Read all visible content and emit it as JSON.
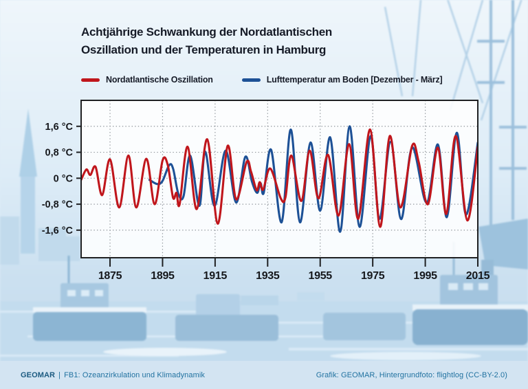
{
  "title": {
    "line1": "Achtjährige Schwankung der Nordatlantischen",
    "line2": "Oszillation und der Temperaturen in Hamburg"
  },
  "legend": {
    "items": [
      {
        "label": "Nordatlantische Oszillation",
        "color": "#c0161c"
      },
      {
        "label": "Lufttemperatur am Boden [Dezember - März]",
        "color": "#1d5196"
      }
    ]
  },
  "footer": {
    "brand": "GEOMAR",
    "separator": "|",
    "department": "FB1: Ozeanzirkulation und Klimadynamik",
    "credit": "Grafik: GEOMAR, Hintergrundfoto: flightlog (CC-BY-2.0)"
  },
  "chart_data": {
    "type": "line",
    "title": "Achtjährige Schwankung der Nordatlantischen Oszillation und der Temperaturen in Hamburg",
    "unit": "°C",
    "grid": "dotted",
    "legend_position": "top",
    "plot_background": "rgba(255,255,255,0.87)",
    "grid_color": "#8f959b",
    "frame_color": "#1f2022",
    "label_color": "#16181c",
    "x_axis": {
      "range": [
        1864,
        2015
      ],
      "ticks": [
        1875,
        1895,
        1915,
        1935,
        1955,
        1975,
        1995,
        2015
      ],
      "tick_labels": [
        "1875",
        "1895",
        "1915",
        "1935",
        "1955",
        "1975",
        "1995",
        "2015"
      ]
    },
    "y_axis": {
      "range": [
        -2.45,
        2.4
      ],
      "ticks": [
        1.6,
        0.8,
        0,
        -0.8,
        -1.6
      ],
      "tick_labels": [
        "1,6 °C",
        "0,8 °C",
        "0 °C",
        "-0,8 °C",
        "-1,6 °C"
      ]
    },
    "series": [
      {
        "name": "Nordatlantische Oszillation",
        "color": "#c0161c",
        "points": [
          [
            1864,
            -0.05
          ],
          [
            1866,
            0.27
          ],
          [
            1867.5,
            0.1
          ],
          [
            1869.5,
            0.35
          ],
          [
            1872,
            -0.52
          ],
          [
            1875,
            0.58
          ],
          [
            1878.5,
            -0.9
          ],
          [
            1882,
            0.7
          ],
          [
            1885,
            -0.9
          ],
          [
            1888.8,
            0.6
          ],
          [
            1892,
            -0.8
          ],
          [
            1895,
            0.55
          ],
          [
            1897,
            0.4
          ],
          [
            1899,
            -0.6
          ],
          [
            1900.3,
            -0.45
          ],
          [
            1901.5,
            -0.8
          ],
          [
            1904.5,
            0.97
          ],
          [
            1908,
            -0.95
          ],
          [
            1912,
            1.2
          ],
          [
            1916,
            -1.4
          ],
          [
            1919.8,
            1.0
          ],
          [
            1923,
            -0.65
          ],
          [
            1927,
            0.5
          ],
          [
            1928.7,
            0.2
          ],
          [
            1930.8,
            -0.37
          ],
          [
            1932,
            -0.12
          ],
          [
            1933.3,
            -0.35
          ],
          [
            1936,
            0.3
          ],
          [
            1940,
            -0.62
          ],
          [
            1941.8,
            -0.58
          ],
          [
            1944,
            0.7
          ],
          [
            1947.8,
            -0.7
          ],
          [
            1951,
            0.85
          ],
          [
            1954.3,
            -0.62
          ],
          [
            1958,
            0.72
          ],
          [
            1962,
            -1.15
          ],
          [
            1966,
            1.05
          ],
          [
            1969.5,
            -1.25
          ],
          [
            1974,
            1.5
          ],
          [
            1977.8,
            -1.5
          ],
          [
            1981.5,
            1.3
          ],
          [
            1985.5,
            -0.9
          ],
          [
            1990,
            1.0
          ],
          [
            1992.5,
            0.5
          ],
          [
            1996,
            -0.8
          ],
          [
            1999.8,
            0.94
          ],
          [
            2003,
            -1.1
          ],
          [
            2006.6,
            1.3
          ],
          [
            2011,
            -1.3
          ],
          [
            2015,
            0.97
          ]
        ]
      },
      {
        "name": "Lufttemperatur am Boden [Dezember - März]",
        "color": "#1d5196",
        "points": [
          [
            1890,
            -0.05
          ],
          [
            1893,
            -0.18
          ],
          [
            1895,
            -0.08
          ],
          [
            1897.5,
            0.4
          ],
          [
            1899,
            0.3
          ],
          [
            1901,
            -0.48
          ],
          [
            1903,
            -0.55
          ],
          [
            1905.5,
            0.7
          ],
          [
            1909,
            -0.85
          ],
          [
            1911.2,
            0.82
          ],
          [
            1914.8,
            -0.85
          ],
          [
            1919,
            0.85
          ],
          [
            1923,
            -0.75
          ],
          [
            1926.5,
            0.66
          ],
          [
            1929,
            -0.1
          ],
          [
            1931,
            -0.45
          ],
          [
            1932.3,
            -0.15
          ],
          [
            1933.5,
            -0.45
          ],
          [
            1936.3,
            0.88
          ],
          [
            1940.3,
            -1.36
          ],
          [
            1943.8,
            1.5
          ],
          [
            1947.3,
            -1.36
          ],
          [
            1951.3,
            1.1
          ],
          [
            1955,
            -1.0
          ],
          [
            1958.8,
            1.26
          ],
          [
            1962.6,
            -1.65
          ],
          [
            1966.2,
            1.6
          ],
          [
            1970,
            -1.5
          ],
          [
            1974.2,
            1.3
          ],
          [
            1977.6,
            -1.25
          ],
          [
            1981.8,
            1.12
          ],
          [
            1985.8,
            -1.26
          ],
          [
            1990,
            0.95
          ],
          [
            1995.5,
            -0.75
          ],
          [
            1999.8,
            1.04
          ],
          [
            2003.2,
            -1.2
          ],
          [
            2007,
            1.4
          ],
          [
            2010.5,
            -1.12
          ],
          [
            2015,
            1.1
          ]
        ]
      }
    ]
  }
}
